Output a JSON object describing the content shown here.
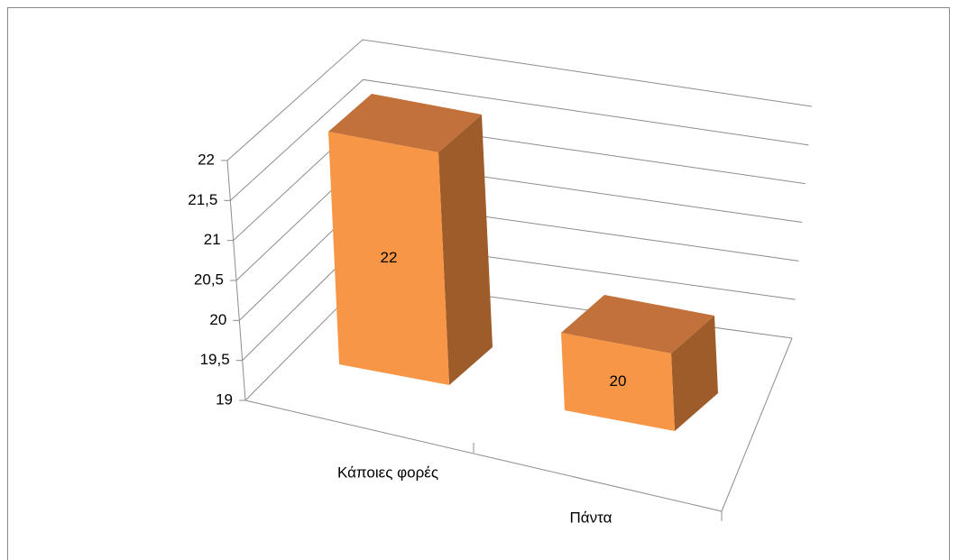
{
  "chart_data": {
    "type": "bar3d",
    "categories": [
      "Κάποιες φορές",
      "Πάντα"
    ],
    "values": [
      22,
      20
    ],
    "color": "#f79646",
    "ylim": [
      19,
      22
    ],
    "yticks": [
      19,
      {
        "value": 19.5,
        "label": "19,5"
      },
      20,
      {
        "value": 20.5,
        "label": "20,5"
      },
      21,
      {
        "value": 21.5,
        "label": "21,5"
      },
      22
    ],
    "grid": true
  }
}
